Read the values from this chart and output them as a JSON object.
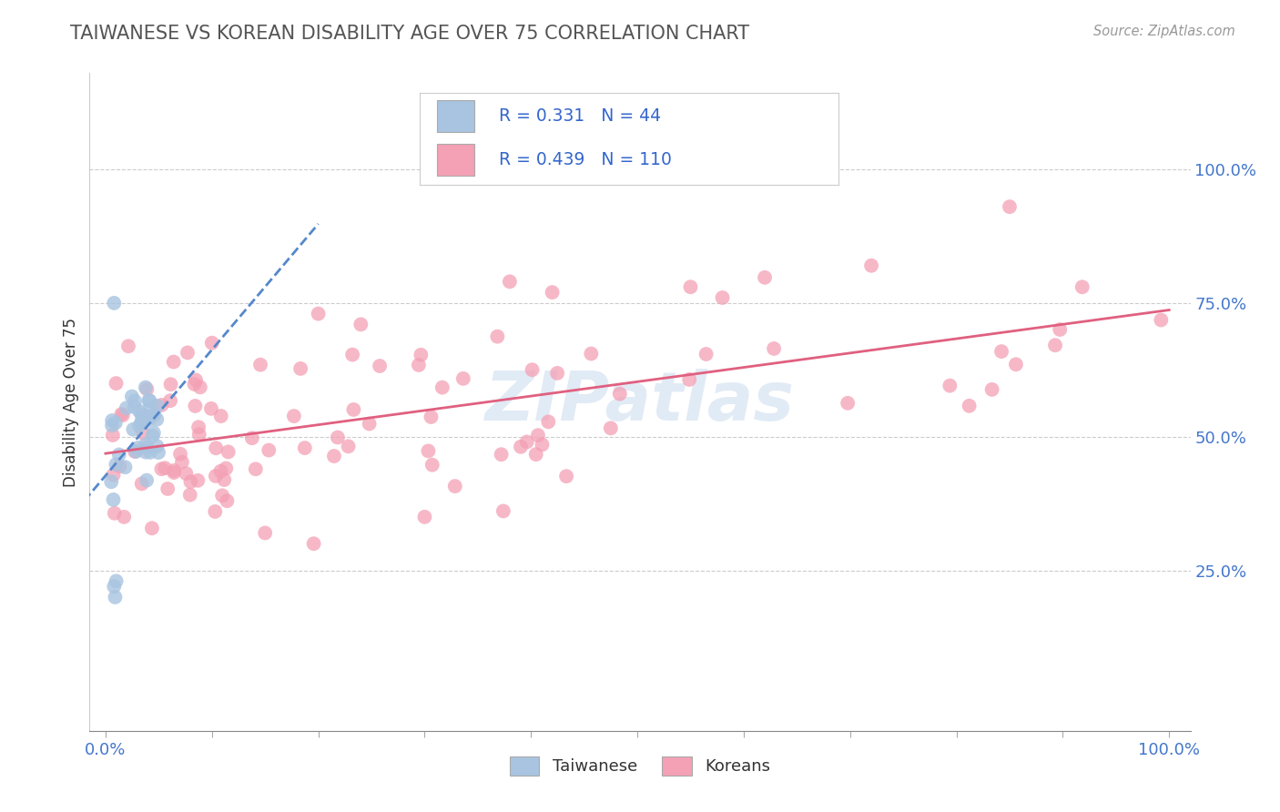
{
  "title": "TAIWANESE VS KOREAN DISABILITY AGE OVER 75 CORRELATION CHART",
  "source_text": "Source: ZipAtlas.com",
  "ylabel": "Disability Age Over 75",
  "taiwanese_color": "#a8c4e0",
  "korean_color": "#f4a0b5",
  "taiwanese_line_color": "#5588cc",
  "korean_line_color": "#e06080",
  "taiwanese_R": 0.331,
  "taiwanese_N": 44,
  "korean_R": 0.439,
  "korean_N": 110,
  "legend_label_1": "Taiwanese",
  "legend_label_2": "Koreans",
  "watermark": "ZIPatlas",
  "background_color": "#ffffff",
  "grid_color": "#cccccc",
  "title_color": "#555555",
  "axis_label_color": "#333333",
  "tick_color": "#4477cc",
  "stats_color": "#3366cc",
  "xlim": [
    -0.015,
    1.02
  ],
  "ylim": [
    -0.05,
    1.18
  ],
  "x_ticks": [
    0.0,
    0.1,
    0.2,
    0.3,
    0.4,
    0.5,
    0.6,
    0.7,
    0.8,
    0.9,
    1.0
  ],
  "y_ticks_right": [
    0.25,
    0.5,
    0.75,
    1.0
  ],
  "y_tick_labels_right": [
    "25.0%",
    "50.0%",
    "75.0%",
    "100.0%"
  ]
}
